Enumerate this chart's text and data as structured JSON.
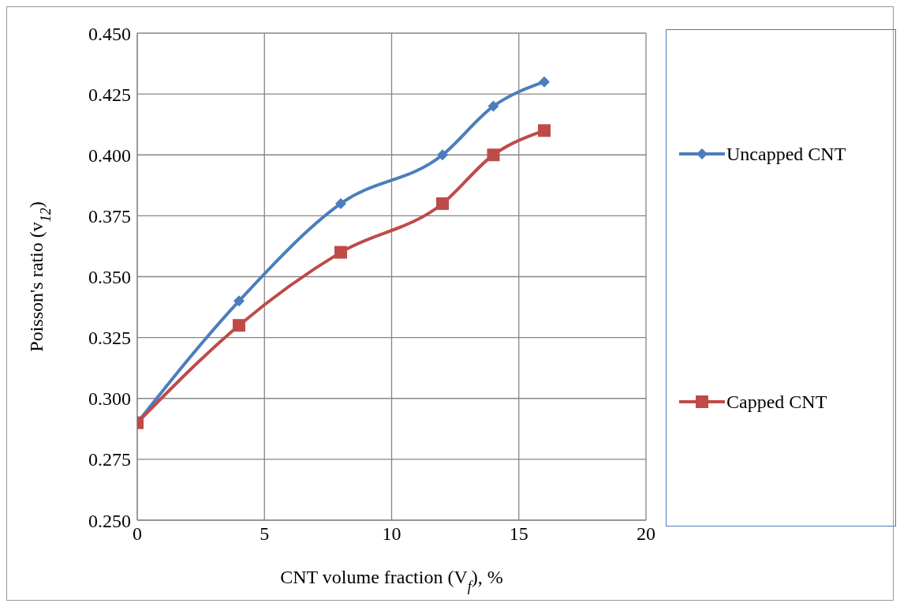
{
  "chart_data": {
    "type": "line",
    "xlabel": "CNT volume fraction (V$_{f}$), %",
    "ylabel": "Poisson's ratio (v$_{12}$)",
    "x": [
      0,
      4,
      8,
      12,
      14,
      16
    ],
    "series": [
      {
        "name": "Uncapped CNT",
        "color": "#4a7ebb",
        "marker": "diamond",
        "values": [
          0.29,
          0.34,
          0.38,
          0.4,
          0.42,
          0.43
        ]
      },
      {
        "name": "Capped CNT",
        "color": "#be4b48",
        "marker": "square",
        "values": [
          0.29,
          0.33,
          0.36,
          0.38,
          0.4,
          0.41
        ]
      }
    ],
    "xlim": [
      0,
      20
    ],
    "xticks": [
      0,
      5,
      10,
      15,
      20
    ],
    "ylim": [
      0.25,
      0.45
    ],
    "yticks": [
      {
        "value": 0.25,
        "label": "0.250"
      },
      {
        "value": 0.275,
        "label": "0.275"
      },
      {
        "value": 0.3,
        "label": "0.300"
      },
      {
        "value": 0.325,
        "label": "0.325"
      },
      {
        "value": 0.35,
        "label": "0.350"
      },
      {
        "value": 0.375,
        "label": "0.375"
      },
      {
        "value": 0.4,
        "label": "0.400"
      },
      {
        "value": 0.425,
        "label": "0.425"
      },
      {
        "value": 0.45,
        "label": "0.450"
      }
    ],
    "grid": true,
    "legend": "right",
    "line_style": "solid"
  }
}
